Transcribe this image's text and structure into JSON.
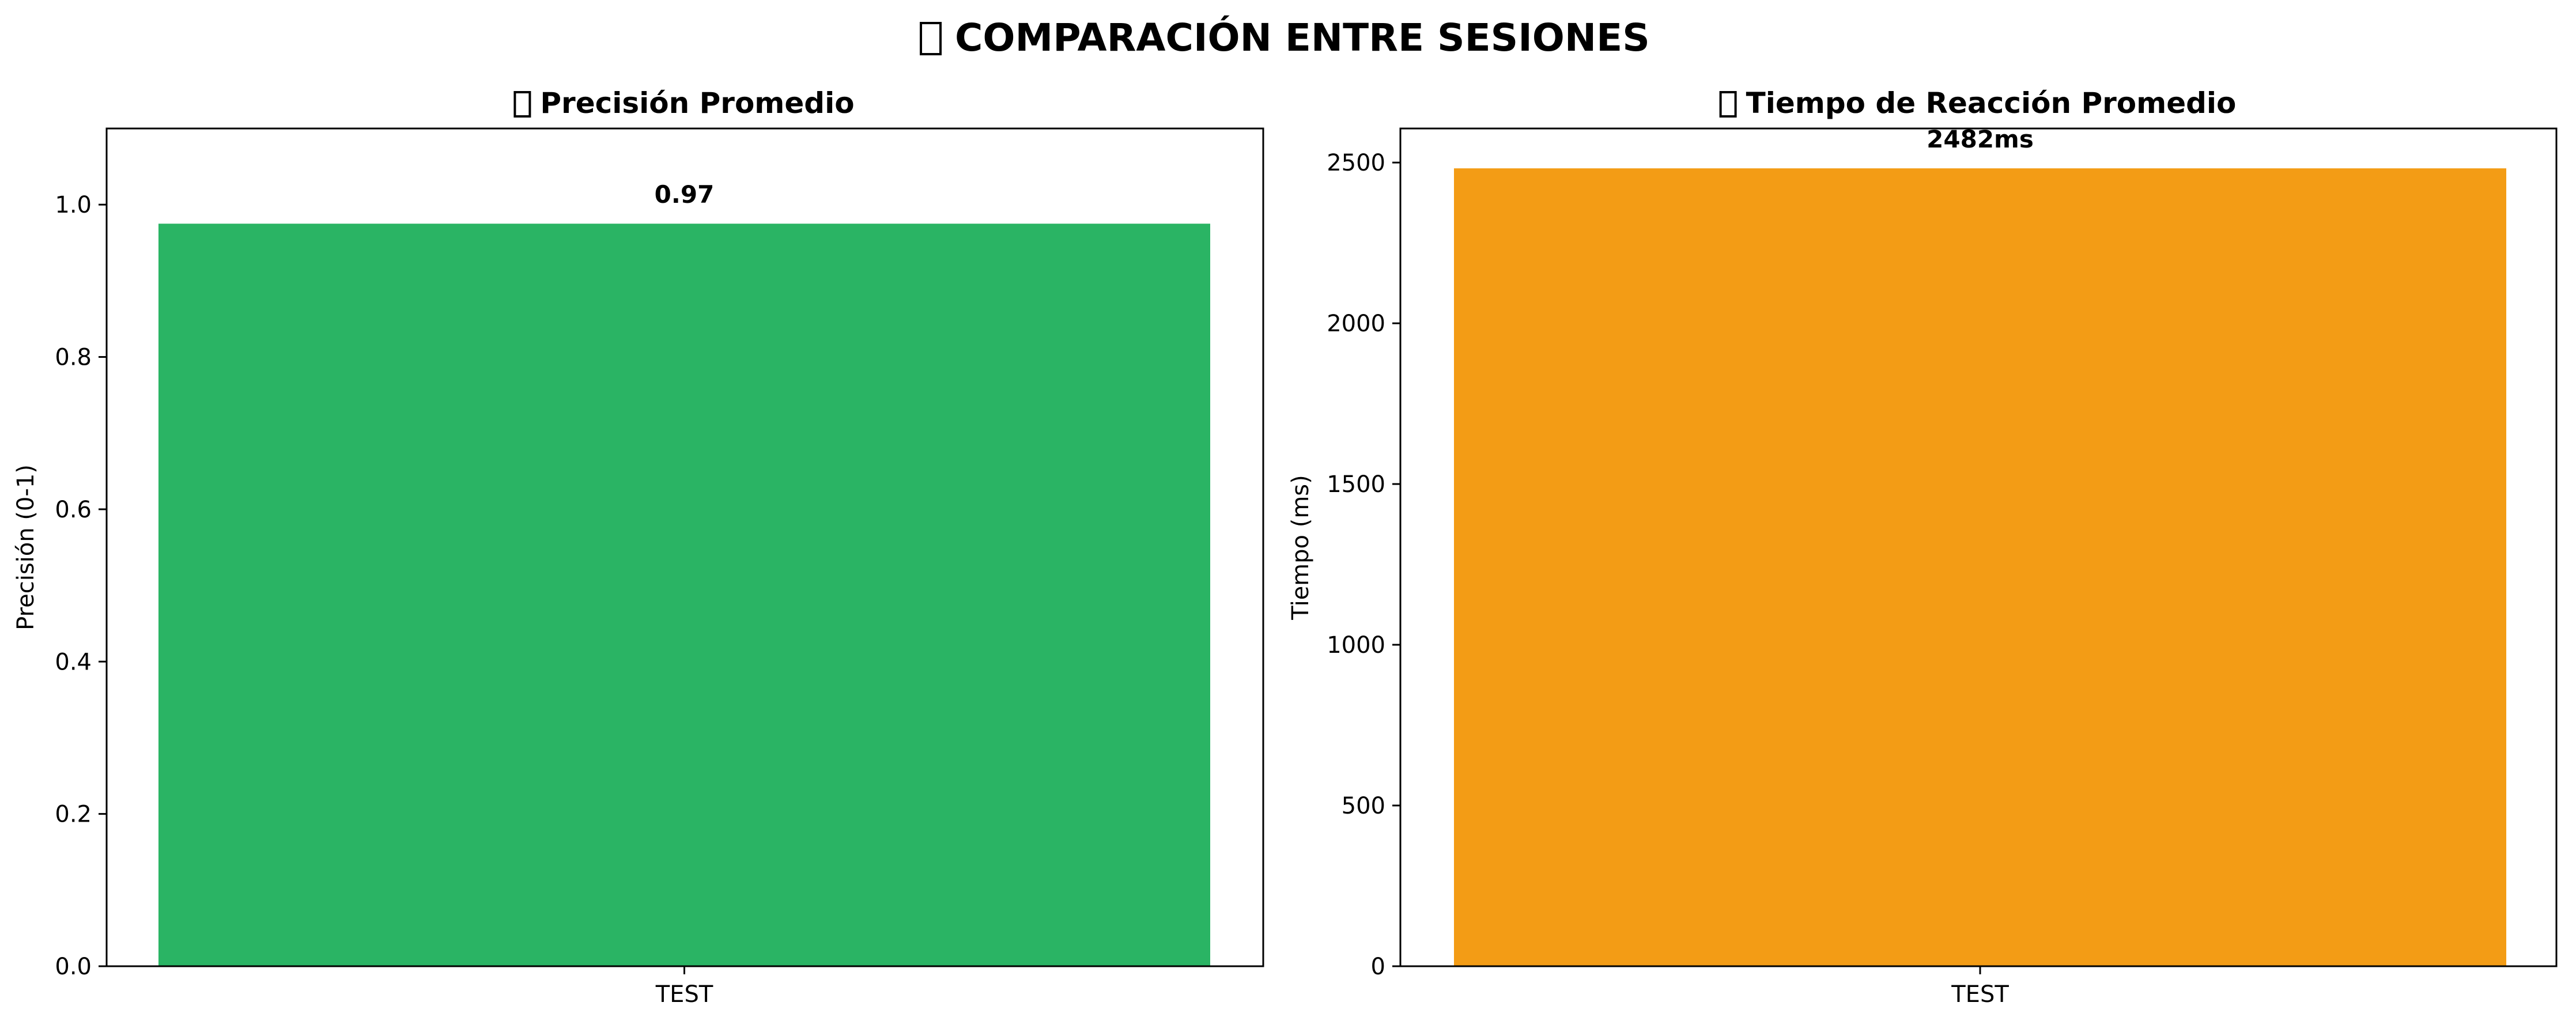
{
  "figure": {
    "suptitle": "COMPARACIÓN ENTRE SESIONES",
    "title_icon": "missing-glyph-box"
  },
  "chart_data": [
    {
      "type": "bar",
      "title": "Precisión Promedio",
      "title_icon": "missing-glyph-box",
      "categories": [
        "TEST"
      ],
      "values": [
        0.975
      ],
      "data_labels": [
        "0.97"
      ],
      "xlabel": "",
      "ylabel": "Precisión (0-1)",
      "ylim": [
        0,
        1.1
      ],
      "yticks": [
        0.0,
        0.2,
        0.4,
        0.6,
        0.8,
        1.0
      ],
      "ytick_labels": [
        "0.0",
        "0.2",
        "0.4",
        "0.6",
        "0.8",
        "1.0"
      ],
      "bar_color": "#2ab464",
      "grid": false
    },
    {
      "type": "bar",
      "title": "Tiempo de Reacción Promedio",
      "title_icon": "missing-glyph-box",
      "categories": [
        "TEST"
      ],
      "values": [
        2482
      ],
      "data_labels": [
        "2482ms"
      ],
      "xlabel": "",
      "ylabel": "Tiempo (ms)",
      "ylim": [
        0,
        2606
      ],
      "yticks": [
        0,
        500,
        1000,
        1500,
        2000,
        2500
      ],
      "ytick_labels": [
        "0",
        "500",
        "1000",
        "1500",
        "2000",
        "2500"
      ],
      "bar_color": "#f39c15",
      "grid": false
    }
  ]
}
